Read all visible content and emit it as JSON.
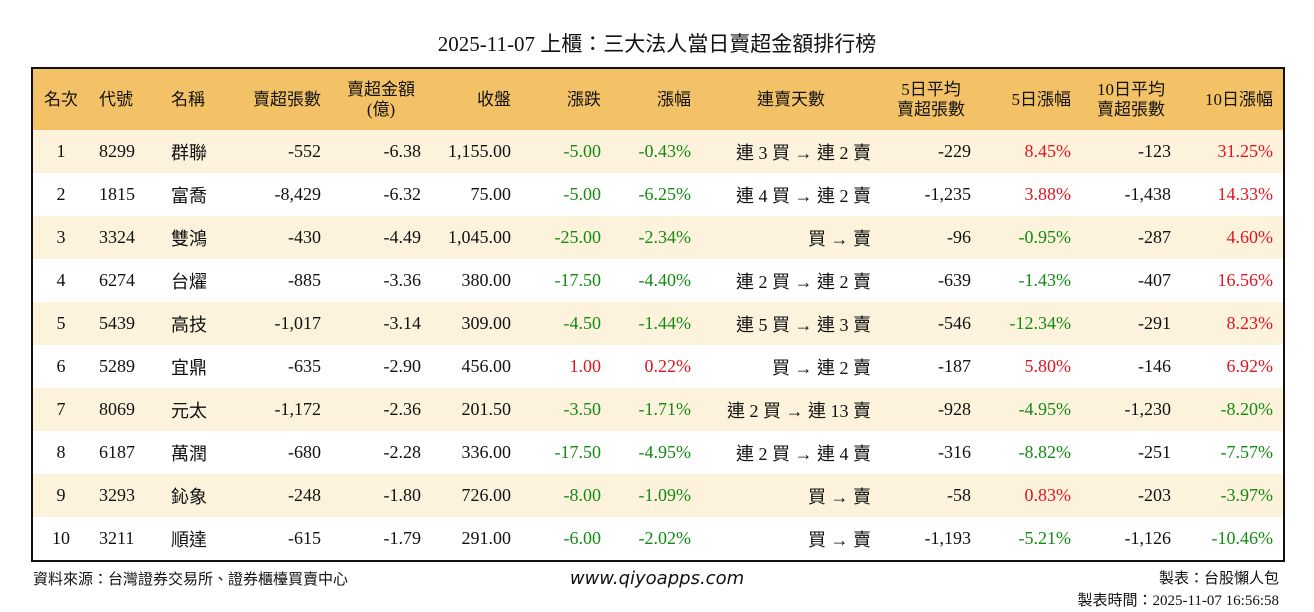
{
  "title": "2025-11-07 上櫃：三大法人當日賣超金額排行榜",
  "table": {
    "headers": [
      "名次",
      "代號",
      "名稱",
      "賣超張數",
      "賣超金額\n(億)",
      "收盤",
      "漲跌",
      "漲幅",
      "連賣天數",
      "5日平均\n賣超張數",
      "5日漲幅",
      "10日平均\n賣超張數",
      "10日漲幅"
    ],
    "rows": [
      [
        "1",
        "8299",
        "群聯",
        "-552",
        "-6.38",
        "1,155.00",
        "-5.00",
        "-0.43%",
        "連 3 買 → 連 2 賣",
        "-229",
        "8.45%",
        "-123",
        "31.25%"
      ],
      [
        "2",
        "1815",
        "富喬",
        "-8,429",
        "-6.32",
        "75.00",
        "-5.00",
        "-6.25%",
        "連 4 買 → 連 2 賣",
        "-1,235",
        "3.88%",
        "-1,438",
        "14.33%"
      ],
      [
        "3",
        "3324",
        "雙鴻",
        "-430",
        "-4.49",
        "1,045.00",
        "-25.00",
        "-2.34%",
        "買 → 賣",
        "-96",
        "-0.95%",
        "-287",
        "4.60%"
      ],
      [
        "4",
        "6274",
        "台燿",
        "-885",
        "-3.36",
        "380.00",
        "-17.50",
        "-4.40%",
        "連 2 買 → 連 2 賣",
        "-639",
        "-1.43%",
        "-407",
        "16.56%"
      ],
      [
        "5",
        "5439",
        "高技",
        "-1,017",
        "-3.14",
        "309.00",
        "-4.50",
        "-1.44%",
        "連 5 買 → 連 3 賣",
        "-546",
        "-12.34%",
        "-291",
        "8.23%"
      ],
      [
        "6",
        "5289",
        "宜鼎",
        "-635",
        "-2.90",
        "456.00",
        "1.00",
        "0.22%",
        "買 → 連 2 賣",
        "-187",
        "5.80%",
        "-146",
        "6.92%"
      ],
      [
        "7",
        "8069",
        "元太",
        "-1,172",
        "-2.36",
        "201.50",
        "-3.50",
        "-1.71%",
        "連 2 買 → 連 13 賣",
        "-928",
        "-4.95%",
        "-1,230",
        "-8.20%"
      ],
      [
        "8",
        "6187",
        "萬潤",
        "-680",
        "-2.28",
        "336.00",
        "-17.50",
        "-4.95%",
        "連 2 買 → 連 4 賣",
        "-316",
        "-8.82%",
        "-251",
        "-7.57%"
      ],
      [
        "9",
        "3293",
        "鈊象",
        "-248",
        "-1.80",
        "726.00",
        "-8.00",
        "-1.09%",
        "買 → 賣",
        "-58",
        "0.83%",
        "-203",
        "-3.97%"
      ],
      [
        "10",
        "3211",
        "順達",
        "-615",
        "-1.79",
        "291.00",
        "-6.00",
        "-2.02%",
        "買 → 賣",
        "-1,193",
        "-5.21%",
        "-1,126",
        "-10.46%"
      ]
    ]
  },
  "footer": {
    "source": "資料來源：台灣證券交易所、證券櫃檯買賣中心",
    "website": "www.qiyoapps.com",
    "maker": "製表：台股懶人包",
    "time": "製表時間：2025-11-07 16:56:58"
  }
}
